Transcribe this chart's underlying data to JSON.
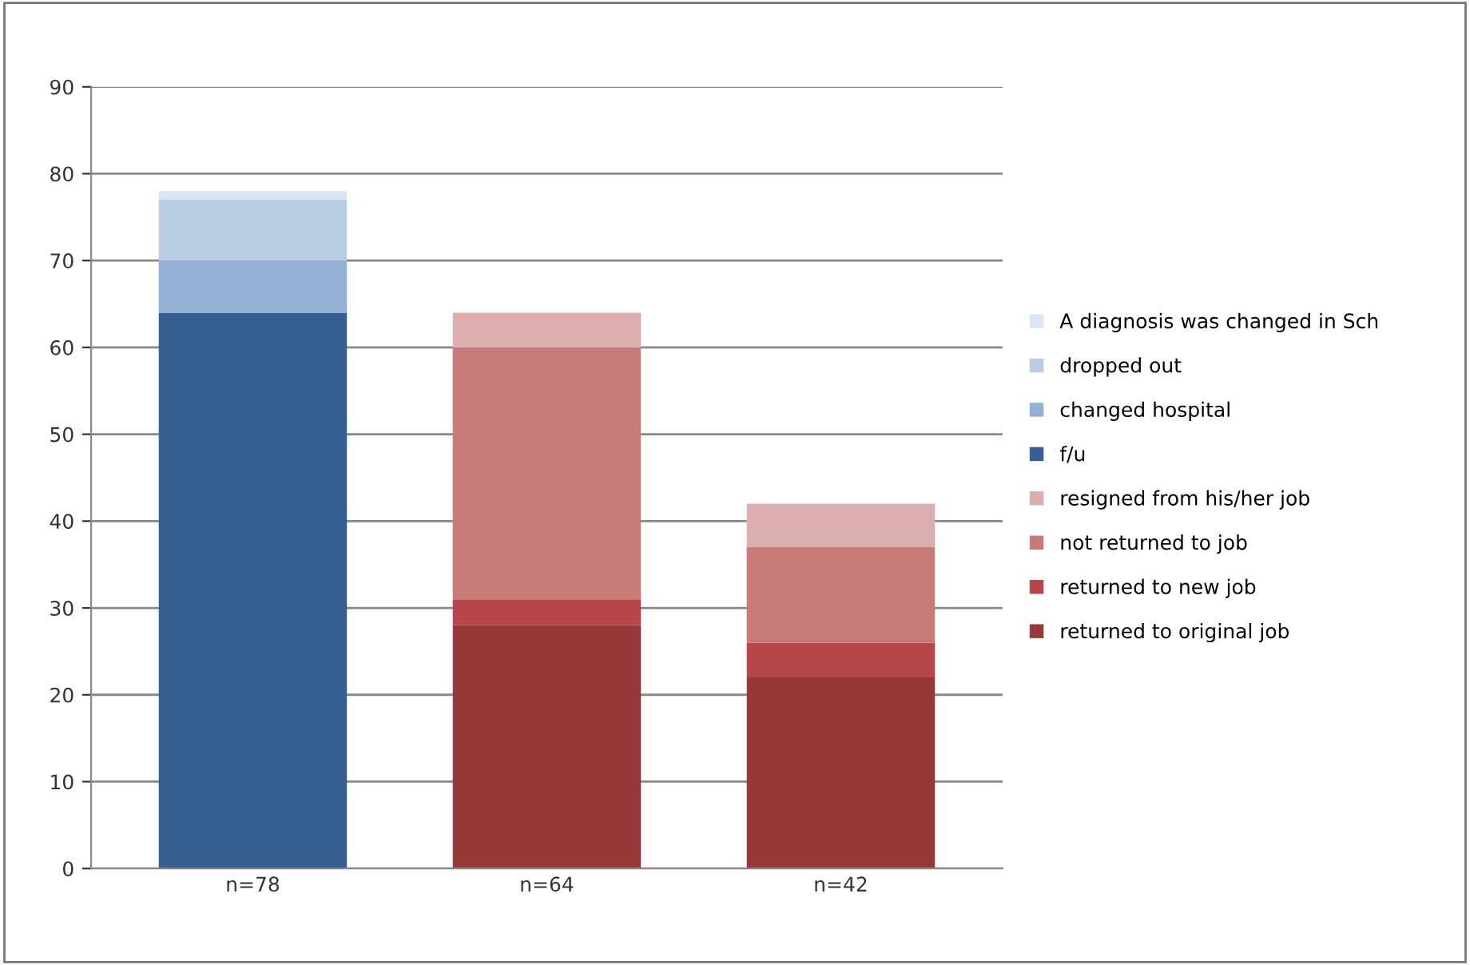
{
  "chart_data": {
    "type": "bar",
    "stacked": true,
    "categories": [
      "n=78",
      "n=64",
      "n=42"
    ],
    "series": [
      {
        "name": "returned to original job",
        "color": "#953a39",
        "values": [
          0,
          28,
          22
        ]
      },
      {
        "name": "returned to new job",
        "color": "#b7474a",
        "values": [
          0,
          3,
          4
        ]
      },
      {
        "name": "not returned to job",
        "color": "#c87a78",
        "values": [
          0,
          29,
          11
        ]
      },
      {
        "name": "resigned from his/her job",
        "color": "#dcaeae",
        "values": [
          0,
          4,
          5
        ]
      },
      {
        "name": "f/u",
        "color": "#366092",
        "values": [
          64,
          0,
          0
        ]
      },
      {
        "name": "changed hospital",
        "color": "#93b1d7",
        "values": [
          6,
          0,
          0
        ]
      },
      {
        "name": "dropped out",
        "color": "#b8cce4",
        "values": [
          7,
          0,
          0
        ]
      },
      {
        "name": "A diagnosis was changed in Sch",
        "color": "#dce6f2",
        "values": [
          1,
          0,
          0
        ]
      }
    ],
    "ylim": [
      0,
      90
    ],
    "yticks": [
      0,
      10,
      20,
      30,
      40,
      50,
      60,
      70,
      80,
      90
    ],
    "grid": "y",
    "legend": "right"
  }
}
